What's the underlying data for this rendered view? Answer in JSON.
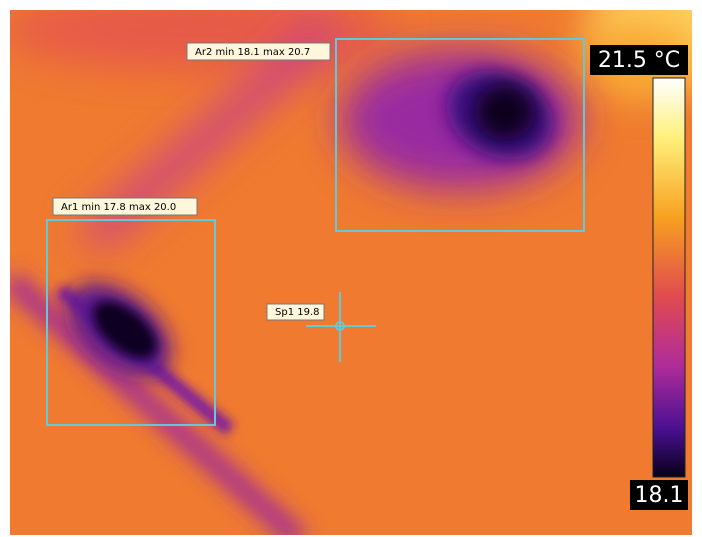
{
  "areas": [
    {
      "label": "Ar2 min 18.1 max 20.7"
    },
    {
      "label": "Ar1 min 17.8 max 20.0"
    }
  ],
  "spot": {
    "label": "Sp1 19.8"
  },
  "scale": {
    "max": "21.5 °C",
    "min": "18.1"
  }
}
